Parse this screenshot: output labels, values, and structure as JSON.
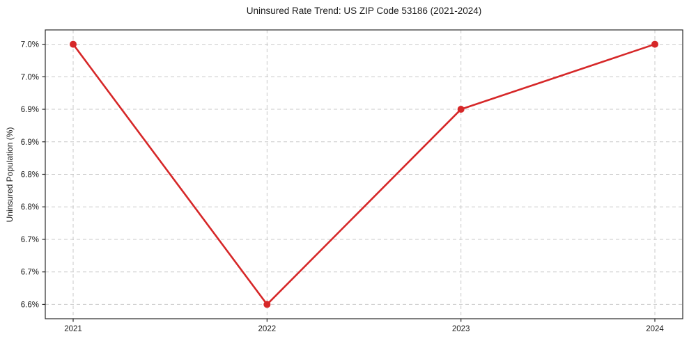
{
  "chart_data": {
    "type": "line",
    "title": "Uninsured Rate Trend: US ZIP Code 53186 (2021-2024)",
    "xlabel": "",
    "ylabel": "Uninsured Population (%)",
    "x": [
      2021,
      2022,
      2023,
      2024
    ],
    "x_tick_labels": [
      "2021",
      "2022",
      "2023",
      "2024"
    ],
    "series": [
      {
        "name": "uninsured-rate",
        "values": [
          7.0,
          6.6,
          6.9,
          7.0
        ],
        "color": "#d62728",
        "marker": "circle"
      }
    ],
    "y_ticks": [
      7.0,
      6.95,
      6.9,
      6.85,
      6.8,
      6.75,
      6.7,
      6.65,
      6.6
    ],
    "y_tick_labels": [
      "7.0%",
      "7.0%",
      "6.9%",
      "6.9%",
      "6.8%",
      "6.8%",
      "6.7%",
      "6.7%",
      "6.6%"
    ],
    "ylim": [
      6.578,
      7.022
    ],
    "grid": true,
    "grid_style": "dashed",
    "legend_position": "none"
  },
  "colors": {
    "line": "#d62728",
    "marker": "#d62728",
    "grid": "#c9c9c9",
    "spine": "#2a2a2a",
    "tick": "#2a2a2a",
    "text": "#1a1a1a",
    "background": "#ffffff"
  }
}
